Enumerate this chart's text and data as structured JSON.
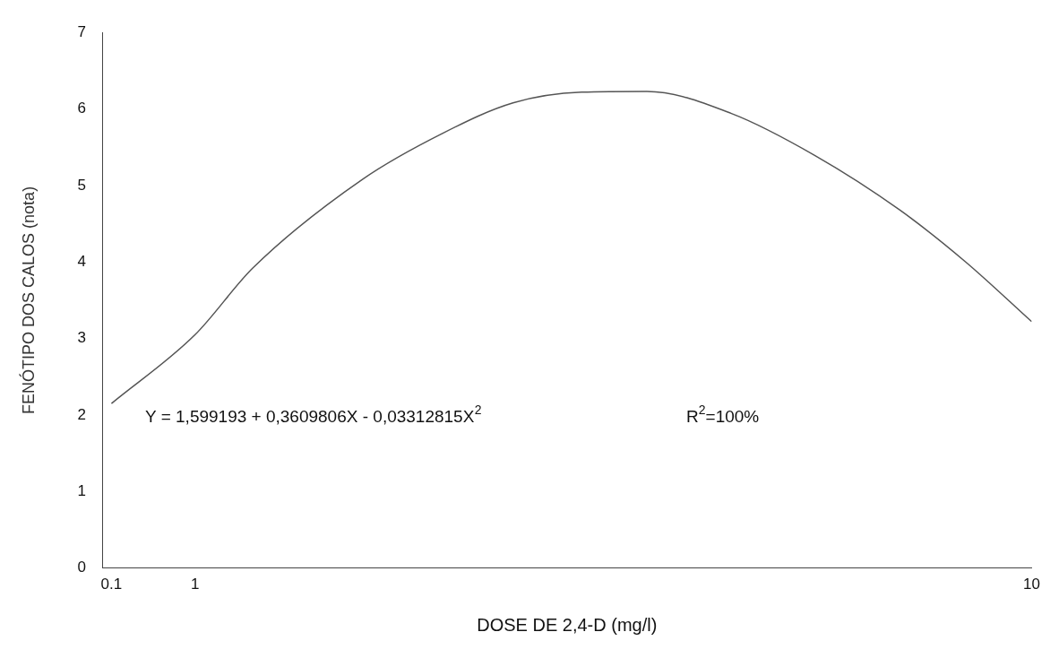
{
  "chart_data": {
    "type": "line",
    "xlabel": "DOSE DE 2,4-D (mg/l)",
    "ylabel": "FENÓTIPO DOS CALOS (nota)",
    "annotations": [
      "Y = 1,599193 + 0,3609806X - 0,03312815X$^{2}$",
      "R$^{2}$=100%"
    ],
    "x": [
      0.1,
      1.0,
      1.62,
      2.8,
      3.66,
      4.42,
      5.16,
      5.86,
      6.77,
      7.67,
      8.58,
      9.29,
      10.0
    ],
    "series": [
      {
        "color": "#555555",
        "values": [
          2.15,
          3.05,
          3.92,
          5.08,
          5.68,
          6.08,
          6.22,
          6.23,
          5.94,
          5.39,
          4.68,
          4.0,
          3.22
        ]
      }
    ],
    "xlim": [
      0,
      10
    ],
    "xticks": [
      0.1,
      1,
      10
    ],
    "ylim": [
      0,
      7
    ],
    "yticks": [
      0,
      1,
      2,
      3,
      4,
      5,
      6,
      7
    ],
    "grid": false,
    "legend": false,
    "marker": "none",
    "line_style": "solid"
  }
}
